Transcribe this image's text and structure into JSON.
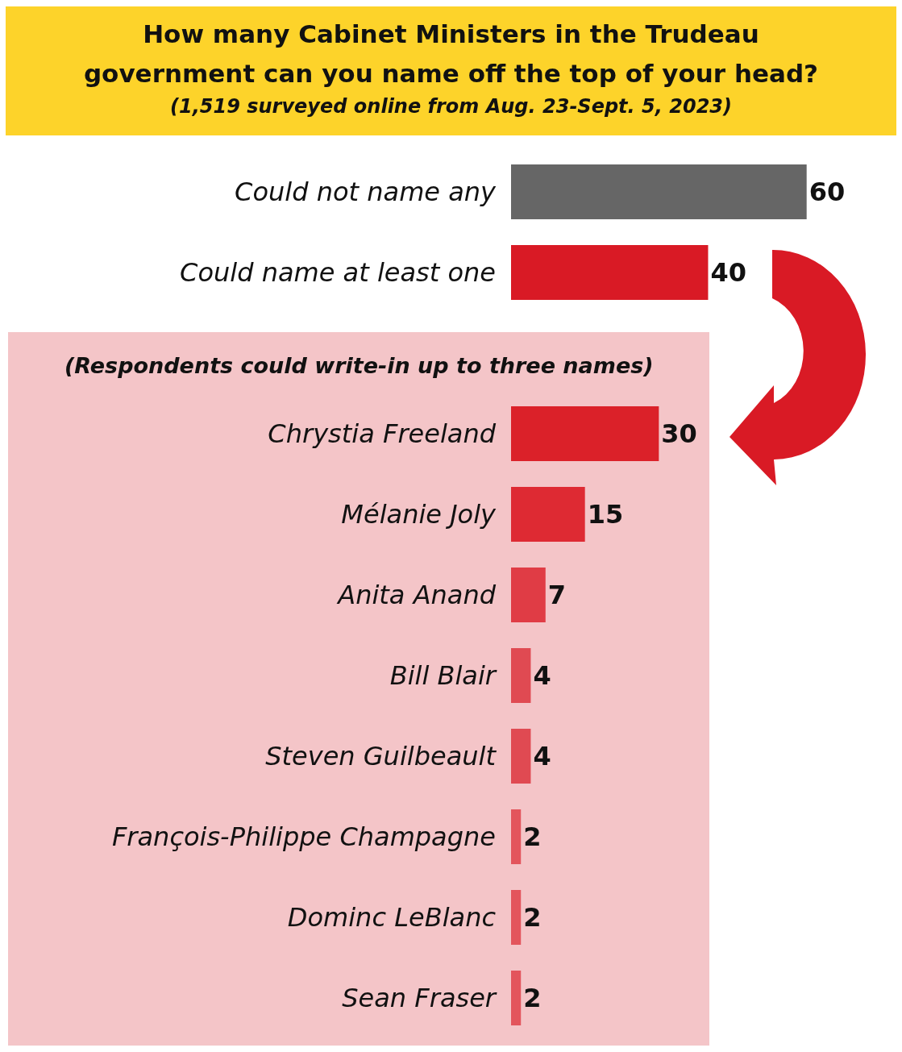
{
  "chart_data": {
    "type": "bar",
    "orientation": "horizontal",
    "title": "How many Cabinet Ministers in the Trudeau government can you name off the top of your head?",
    "subtitle": "(1,519 surveyed online from Aug. 23-Sept. 5, 2023)",
    "categories": [
      "Could not name any",
      "Could name at least one",
      "Chrystia Freeland",
      "Mélanie Joly",
      "Anita Anand",
      "Bill Blair",
      "Steven Guilbeault",
      "François-Philippe Champagne",
      "Dominc LeBlanc",
      "Sean Fraser"
    ],
    "values": [
      60,
      40,
      30,
      15,
      7,
      4,
      4,
      2,
      2,
      2
    ],
    "colors": [
      "#666666",
      "#d91a25",
      "#db2129",
      "#de2a33",
      "#e03c45",
      "#e04a52",
      "#e04a52",
      "#e3555c",
      "#e3555c",
      "#e3555c"
    ],
    "tick_labels": "y",
    "data_labels": true,
    "annotations": [
      "(Respondents could write-in up to three names)"
    ]
  }
}
